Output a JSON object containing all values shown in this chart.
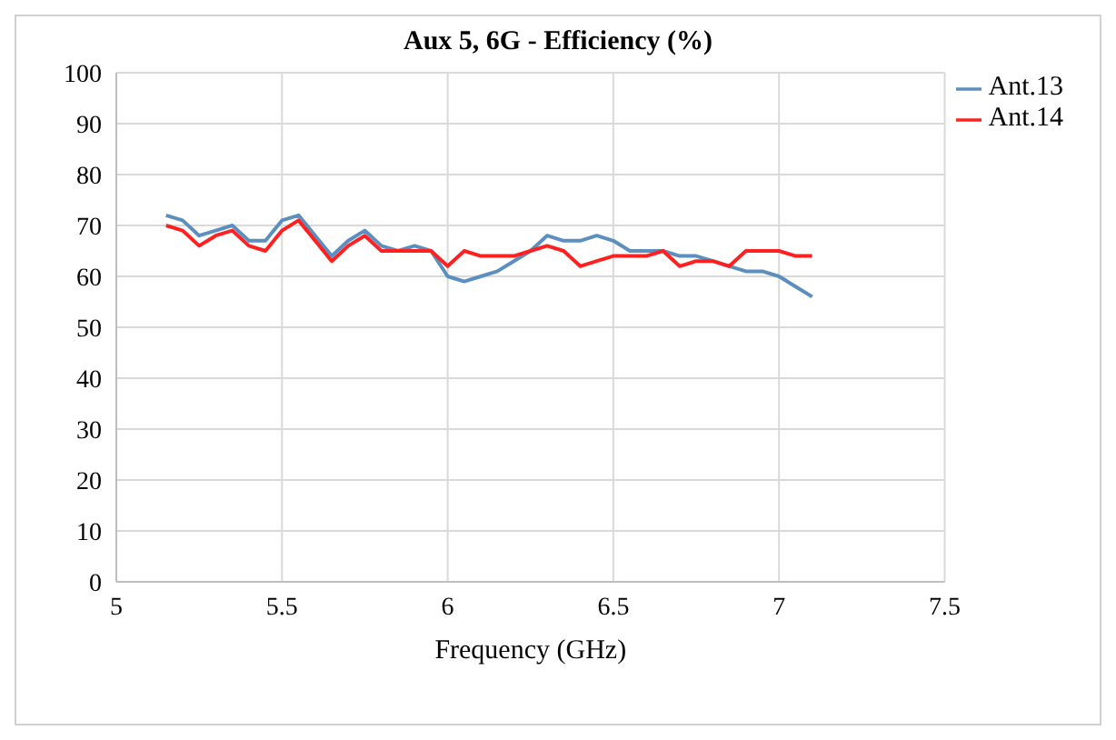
{
  "chart_data": {
    "type": "line",
    "title": "Aux 5, 6G - Efficiency (%)",
    "xlabel": "Frequency (GHz)",
    "x": [
      5.15,
      5.2,
      5.25,
      5.3,
      5.35,
      5.4,
      5.45,
      5.5,
      5.55,
      5.6,
      5.65,
      5.7,
      5.75,
      5.8,
      5.85,
      5.9,
      5.95,
      6.0,
      6.05,
      6.1,
      6.15,
      6.2,
      6.25,
      6.3,
      6.35,
      6.4,
      6.45,
      6.5,
      6.55,
      6.6,
      6.65,
      6.7,
      6.75,
      6.8,
      6.85,
      6.9,
      6.95,
      7.0,
      7.05,
      7.1
    ],
    "series": [
      {
        "name": "Ant.13",
        "color": "#5b8fbf",
        "values": [
          72,
          71,
          68,
          69,
          70,
          67,
          67,
          71,
          72,
          68,
          64,
          67,
          69,
          66,
          65,
          66,
          65,
          60,
          59,
          60,
          61,
          63,
          65,
          68,
          67,
          67,
          68,
          67,
          65,
          65,
          65,
          64,
          64,
          63,
          62,
          61,
          61,
          60,
          58,
          56
        ]
      },
      {
        "name": "Ant.14",
        "color": "#ff2020",
        "values": [
          70,
          69,
          66,
          68,
          69,
          66,
          65,
          69,
          71,
          67,
          63,
          66,
          68,
          65,
          65,
          65,
          65,
          62,
          65,
          64,
          64,
          64,
          65,
          66,
          65,
          62,
          63,
          64,
          64,
          64,
          65,
          62,
          63,
          63,
          62,
          65,
          65,
          65,
          64,
          64
        ]
      }
    ],
    "xlim": [
      5,
      7.5
    ],
    "xticks": [
      5,
      5.5,
      6,
      6.5,
      7,
      7.5
    ],
    "ylim": [
      0,
      100
    ],
    "yticks": [
      0,
      10,
      20,
      30,
      40,
      50,
      60,
      70,
      80,
      90,
      100
    ],
    "grid": true,
    "legend": "right",
    "marker": "none",
    "line_style": "solid"
  }
}
